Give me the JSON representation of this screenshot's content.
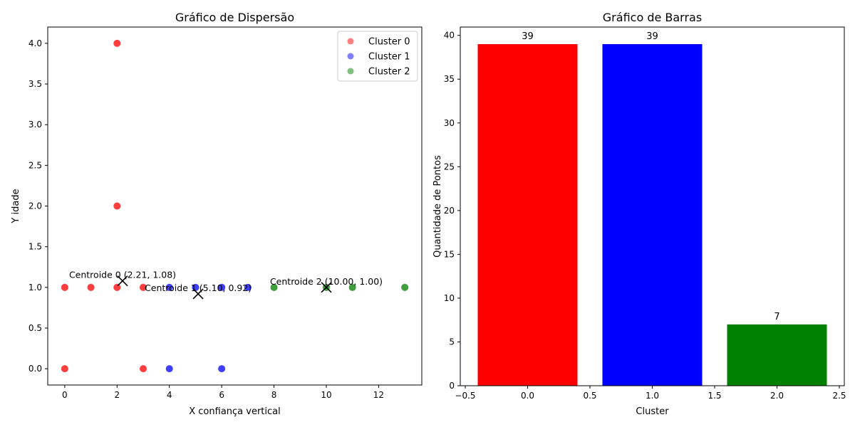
{
  "chart_data": [
    {
      "type": "scatter",
      "title": "Gráfico de Dispersão",
      "xlabel": "X confiança vertical",
      "ylabel": "Y idade",
      "xlim": [
        -0.65,
        13.65
      ],
      "ylim": [
        -0.2,
        4.2
      ],
      "xticks": [
        0,
        2,
        4,
        6,
        8,
        10,
        12
      ],
      "xtick_labels": [
        "0",
        "2",
        "4",
        "6",
        "8",
        "10",
        "12"
      ],
      "yticks": [
        0.0,
        0.5,
        1.0,
        1.5,
        2.0,
        2.5,
        3.0,
        3.5,
        4.0
      ],
      "ytick_labels": [
        "0.0",
        "0.5",
        "1.0",
        "1.5",
        "2.0",
        "2.5",
        "3.0",
        "3.5",
        "4.0"
      ],
      "grid": false,
      "legend_position": "top-right",
      "series": [
        {
          "name": "Cluster 0",
          "color": "#ff0000",
          "points": [
            [
              0,
              1
            ],
            [
              0,
              0
            ],
            [
              1,
              1
            ],
            [
              2,
              1
            ],
            [
              2,
              2
            ],
            [
              2,
              4
            ],
            [
              3,
              1
            ],
            [
              3,
              0
            ]
          ]
        },
        {
          "name": "Cluster 1",
          "color": "#0000ff",
          "points": [
            [
              4,
              1
            ],
            [
              4,
              0
            ],
            [
              5,
              1
            ],
            [
              6,
              1
            ],
            [
              6,
              0
            ],
            [
              7,
              1
            ]
          ]
        },
        {
          "name": "Cluster 2",
          "color": "#008000",
          "points": [
            [
              8,
              1
            ],
            [
              10,
              1
            ],
            [
              11,
              1
            ],
            [
              13,
              1
            ]
          ]
        }
      ],
      "centroids": [
        {
          "x": 2.21,
          "y": 1.08,
          "label": "Centroide 0 (2.21, 1.08)"
        },
        {
          "x": 5.1,
          "y": 0.92,
          "label": "Centroide 1 (5.10, 0.92)"
        },
        {
          "x": 10.0,
          "y": 1.0,
          "label": "Centroide 2 (10.00, 1.00)"
        }
      ]
    },
    {
      "type": "bar",
      "title": "Gráfico de Barras",
      "xlabel": "Cluster",
      "ylabel": "Quantidade de Pontos",
      "x": [
        0,
        1,
        2
      ],
      "values": [
        39,
        39,
        7
      ],
      "value_labels": [
        "39",
        "39",
        "7"
      ],
      "colors": [
        "#ff0000",
        "#0000ff",
        "#008000"
      ],
      "xlim": [
        -0.54,
        2.54
      ],
      "ylim": [
        0,
        40.95
      ],
      "xticks": [
        -0.5,
        0.0,
        0.5,
        1.0,
        1.5,
        2.0,
        2.5
      ],
      "xtick_labels": [
        "−0.5",
        "0.0",
        "0.5",
        "1.0",
        "1.5",
        "2.0",
        "2.5"
      ],
      "yticks": [
        0,
        5,
        10,
        15,
        20,
        25,
        30,
        35,
        40
      ],
      "ytick_labels": [
        "0",
        "5",
        "10",
        "15",
        "20",
        "25",
        "30",
        "35",
        "40"
      ],
      "grid": false
    }
  ]
}
